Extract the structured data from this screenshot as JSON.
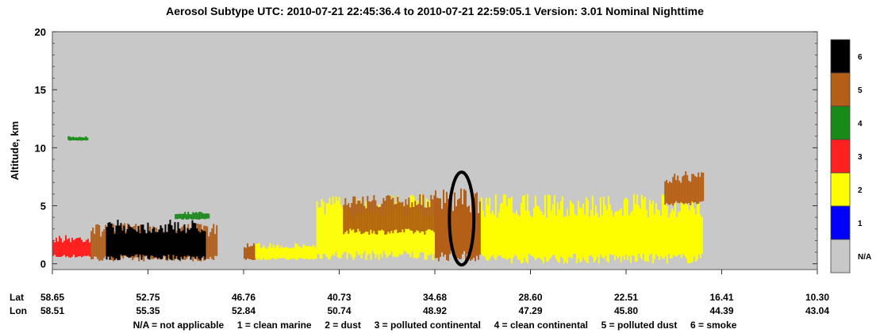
{
  "chart_data": {
    "type": "heatmap",
    "title": "Aerosol Subtype    UTC:  2010-07-21   22:45:36.4  to  2010-07-21   22:59:05.1    Version: 3.01  Nominal Nighttime",
    "ylabel": "Altitude, km",
    "ylim": [
      -0.5,
      20
    ],
    "yticks": [
      "0",
      "5",
      "10",
      "15",
      "20"
    ],
    "x_axis": {
      "row_labels": [
        "Lat",
        "Lon"
      ],
      "lat": [
        "58.65",
        "52.75",
        "46.76",
        "40.73",
        "34.68",
        "28.60",
        "22.51",
        "16.41",
        "10.30"
      ],
      "lon": [
        "58.51",
        "55.35",
        "52.84",
        "50.74",
        "48.92",
        "47.29",
        "45.80",
        "44.39",
        "43.04"
      ]
    },
    "colorbar": {
      "classes": [
        {
          "label": "6",
          "value": 6,
          "color": "#000000"
        },
        {
          "label": "5",
          "value": 5,
          "color": "#b45f18"
        },
        {
          "label": "4",
          "value": 4,
          "color": "#178a17"
        },
        {
          "label": "3",
          "value": 3,
          "color": "#ff2020"
        },
        {
          "label": "2",
          "value": 2,
          "color": "#ffff00"
        },
        {
          "label": "1",
          "value": 1,
          "color": "#0000ff"
        },
        {
          "label": "N/A",
          "value": 0,
          "color": "#c8c8c8"
        }
      ]
    },
    "legend_text": "N/A = not applicable     1 = clean marine     2 = dust     3 = polluted continental     4 = clean continental     5 = polluted dust     6 = smoke",
    "background_color": "#c8c8c8",
    "features": [
      {
        "label": "clean continental",
        "class": 4,
        "x": [
          0.02,
          0.045
        ],
        "y": [
          10.6,
          11.0
        ]
      },
      {
        "label": "polluted continental",
        "class": 3,
        "x": [
          0.0,
          0.05
        ],
        "y": [
          0.5,
          2.5
        ]
      },
      {
        "label": "polluted dust",
        "class": 5,
        "x": [
          0.05,
          0.215
        ],
        "y": [
          0.2,
          3.5
        ]
      },
      {
        "label": "smoke",
        "class": 6,
        "x": [
          0.07,
          0.2
        ],
        "y": [
          0.3,
          3.8
        ]
      },
      {
        "label": "clean continental",
        "class": 4,
        "x": [
          0.16,
          0.205
        ],
        "y": [
          3.8,
          4.5
        ]
      },
      {
        "label": "polluted dust",
        "class": 5,
        "x": [
          0.25,
          0.265
        ],
        "y": [
          0.3,
          1.8
        ]
      },
      {
        "label": "dust",
        "class": 2,
        "x": [
          0.265,
          0.345
        ],
        "y": [
          0.3,
          1.8
        ]
      },
      {
        "label": "dust",
        "class": 2,
        "x": [
          0.345,
          0.5
        ],
        "y": [
          0.3,
          6.0
        ]
      },
      {
        "label": "polluted dust",
        "class": 5,
        "x": [
          0.38,
          0.5
        ],
        "y": [
          2.5,
          6.0
        ]
      },
      {
        "label": "polluted dust",
        "class": 5,
        "x": [
          0.5,
          0.56
        ],
        "y": [
          0.2,
          6.5
        ]
      },
      {
        "label": "dust",
        "class": 2,
        "x": [
          0.56,
          0.85
        ],
        "y": [
          0.0,
          6.0
        ]
      },
      {
        "label": "polluted dust",
        "class": 5,
        "x": [
          0.8,
          0.85
        ],
        "y": [
          5.0,
          8.0
        ]
      }
    ],
    "annotations": [
      {
        "type": "ellipse",
        "x": 0.535,
        "y": 3.9,
        "rx": 0.016,
        "ry_km": 4.0
      }
    ],
    "grid": false
  }
}
